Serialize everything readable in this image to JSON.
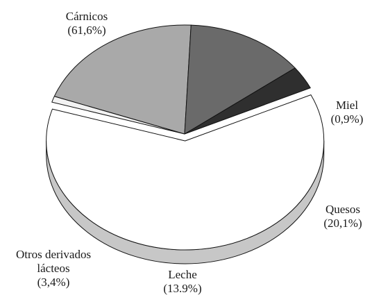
{
  "chart_data": {
    "type": "pie",
    "style": "3d-exploded",
    "title": "",
    "slices": [
      {
        "name": "Cárnicos",
        "value_label": "(61,6%)",
        "value": 61.6,
        "color": "#ffffff"
      },
      {
        "name": "Miel",
        "value_label": "(0,9%)",
        "value": 0.9,
        "color": "#f2f2f2"
      },
      {
        "name": "Quesos",
        "value_label": "(20,1%)",
        "value": 20.1,
        "color": "#a9a9a9"
      },
      {
        "name": "Leche",
        "value_label": "(13.9%)",
        "value": 13.9,
        "color": "#6a6a6a"
      },
      {
        "name": "Otros derivados lácteos",
        "name_lines": [
          "Otros derivados",
          "lácteos"
        ],
        "value_label": "(3,4%)",
        "value": 3.4,
        "color": "#2f2f2f"
      }
    ]
  }
}
